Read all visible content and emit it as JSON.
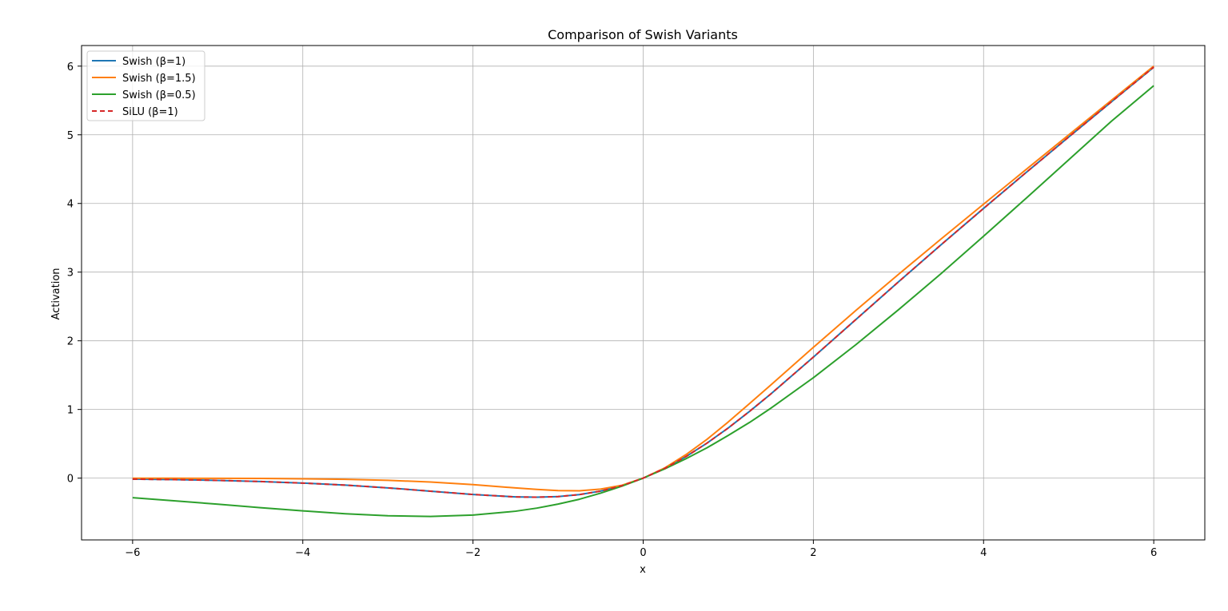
{
  "chart_data": {
    "type": "line",
    "title": "Comparison of Swish Variants",
    "xlabel": "x",
    "ylabel": "Activation",
    "xlim": [
      -6.6,
      6.6
    ],
    "ylim": [
      -0.9,
      6.3
    ],
    "xticks": [
      -6,
      -4,
      -2,
      0,
      2,
      4,
      6
    ],
    "xtick_labels": [
      "−6",
      "−4",
      "−2",
      "0",
      "2",
      "4",
      "6"
    ],
    "yticks": [
      0,
      1,
      2,
      3,
      4,
      5,
      6
    ],
    "ytick_labels": [
      "0",
      "1",
      "2",
      "3",
      "4",
      "5",
      "6"
    ],
    "grid": true,
    "legend_position": "top-left",
    "x": [
      -6,
      -5.5,
      -5,
      -4.5,
      -4,
      -3.5,
      -3,
      -2.5,
      -2,
      -1.5,
      -1.25,
      -1,
      -0.75,
      -0.5,
      -0.25,
      0,
      0.25,
      0.5,
      0.75,
      1,
      1.25,
      1.5,
      2,
      2.5,
      3,
      3.5,
      4,
      4.5,
      5,
      5.5,
      6
    ],
    "series": [
      {
        "name": "Swish (β=1)",
        "color": "#1f77b4",
        "dash": "solid",
        "values": [
          -0.015,
          -0.022,
          -0.033,
          -0.049,
          -0.072,
          -0.102,
          -0.142,
          -0.19,
          -0.238,
          -0.274,
          -0.278,
          -0.269,
          -0.24,
          -0.189,
          -0.11,
          0,
          0.14,
          0.311,
          0.51,
          0.731,
          0.972,
          1.226,
          1.762,
          2.31,
          2.858,
          3.398,
          3.928,
          4.451,
          4.967,
          5.478,
          5.985
        ]
      },
      {
        "name": "Swish (β=1.5)",
        "color": "#ff7f0e",
        "dash": "solid",
        "values": [
          -0.001,
          -0.001,
          -0.003,
          -0.005,
          -0.01,
          -0.018,
          -0.032,
          -0.057,
          -0.095,
          -0.143,
          -0.164,
          -0.182,
          -0.185,
          -0.16,
          -0.104,
          0,
          0.146,
          0.34,
          0.565,
          0.818,
          1.086,
          1.357,
          1.905,
          2.443,
          2.968,
          3.482,
          3.99,
          4.495,
          4.998,
          5.5,
          6.0
        ]
      },
      {
        "name": "Swish (β=0.5)",
        "color": "#2ca02c",
        "dash": "solid",
        "values": [
          -0.285,
          -0.332,
          -0.379,
          -0.43,
          -0.477,
          -0.519,
          -0.548,
          -0.558,
          -0.538,
          -0.482,
          -0.437,
          -0.378,
          -0.308,
          -0.219,
          -0.117,
          0,
          0.133,
          0.281,
          0.442,
          0.622,
          0.811,
          1.018,
          1.462,
          1.944,
          2.452,
          2.978,
          3.523,
          4.076,
          4.635,
          5.195,
          5.715
        ]
      },
      {
        "name": "SiLU (β=1)",
        "color": "#d62728",
        "dash": "dashed",
        "values": [
          -0.015,
          -0.022,
          -0.033,
          -0.049,
          -0.072,
          -0.102,
          -0.142,
          -0.19,
          -0.238,
          -0.274,
          -0.278,
          -0.269,
          -0.24,
          -0.189,
          -0.11,
          0,
          0.14,
          0.311,
          0.51,
          0.731,
          0.972,
          1.226,
          1.762,
          2.31,
          2.858,
          3.398,
          3.928,
          4.451,
          4.967,
          5.478,
          5.985
        ]
      }
    ]
  }
}
